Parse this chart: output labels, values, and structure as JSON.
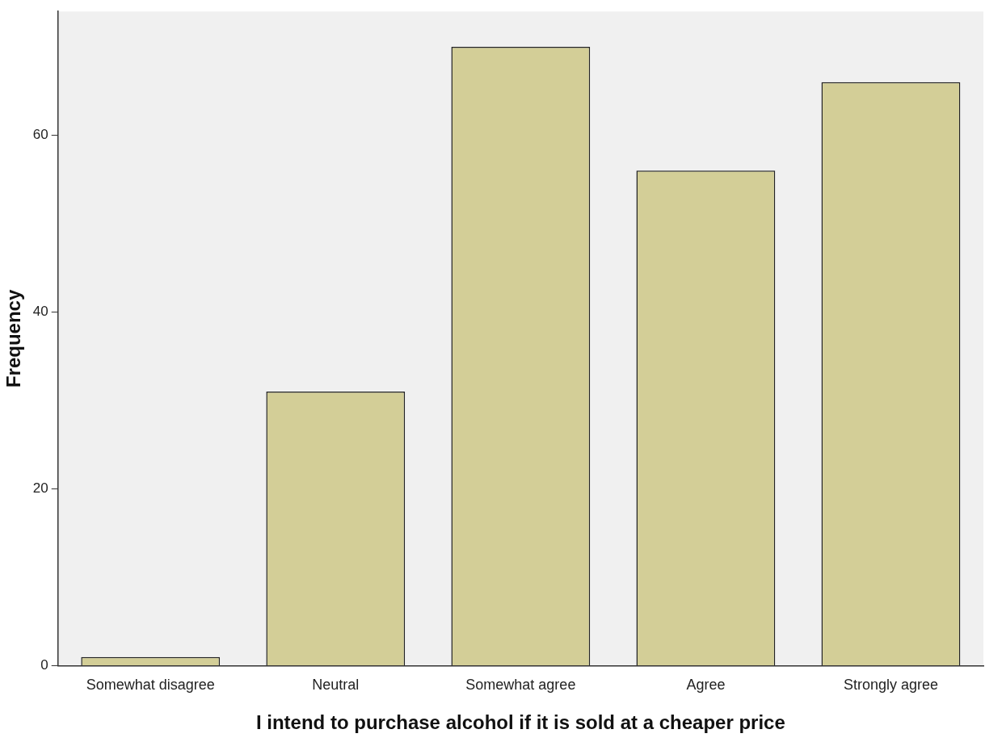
{
  "chart_data": {
    "type": "bar",
    "xlabel": "I intend to purchase alcohol if it is sold at a cheaper price",
    "ylabel": "Frequency",
    "categories": [
      "Somewhat disagree",
      "Neutral",
      "Somewhat agree",
      "Agree",
      "Strongly agree"
    ],
    "values": [
      1,
      31,
      70,
      56,
      66
    ],
    "color": "#d3ce97",
    "ylim": [
      0,
      74
    ],
    "yticks": [
      0,
      20,
      40,
      60
    ],
    "grid": false,
    "legend": false
  }
}
